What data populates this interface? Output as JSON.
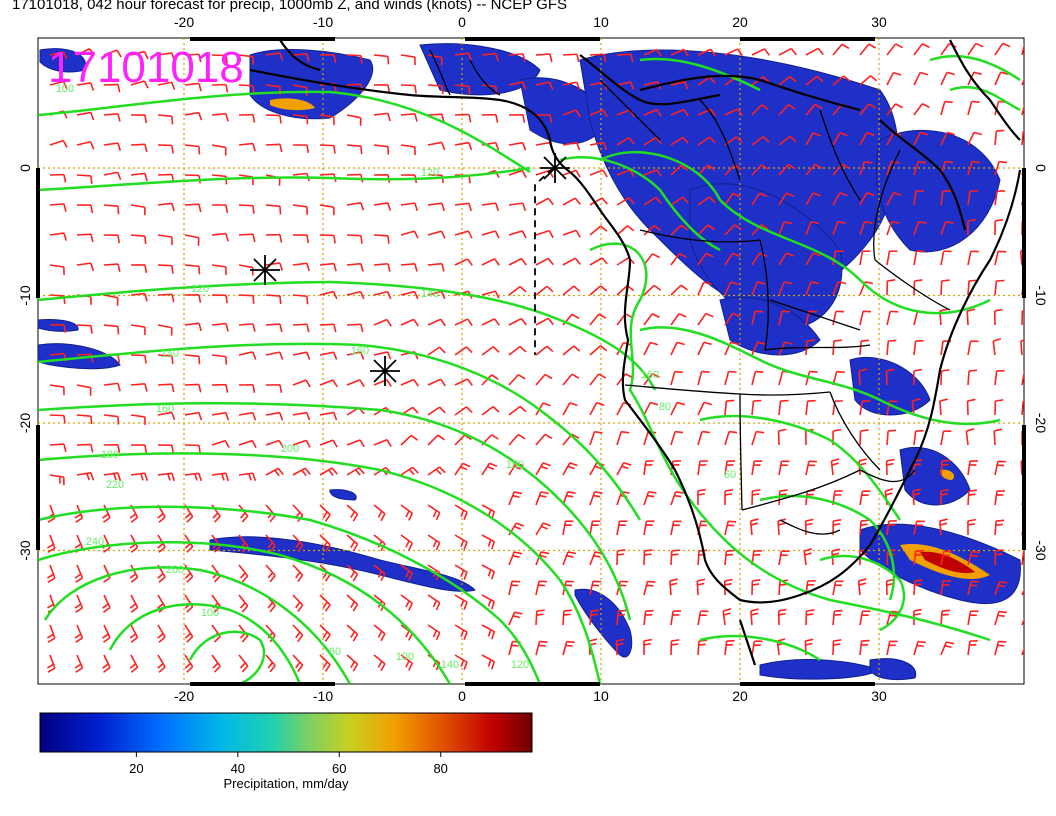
{
  "title": "17101018, 042 hour forecast for precip, 1000mb Z, and winds (knots) -- NCEP GFS",
  "stamp": "17101018",
  "x_ticks": [
    "-20",
    "-10",
    "0",
    "10",
    "20",
    "30"
  ],
  "y_ticks": [
    "0",
    "-10",
    "-20",
    "-30"
  ],
  "contour_labels": [
    "100",
    "120",
    "120",
    "140",
    "140",
    "160",
    "160",
    "180",
    "180",
    "200",
    "220",
    "240",
    "260",
    "100",
    "160",
    "80",
    "60",
    "140",
    "120",
    "100",
    "60"
  ],
  "colorbar": {
    "ticks": [
      "20",
      "40",
      "60",
      "80"
    ],
    "label": "Precipitation, mm/day",
    "colors": [
      "#000080",
      "#0020d0",
      "#0070ff",
      "#00b8e8",
      "#20d0b0",
      "#80d060",
      "#c8d020",
      "#f0a000",
      "#e05000",
      "#c00000",
      "#700000"
    ]
  },
  "colors": {
    "contour": "#22dd22",
    "barb": "#ff2020",
    "coast": "#000000",
    "grid": "#d8a000"
  }
}
